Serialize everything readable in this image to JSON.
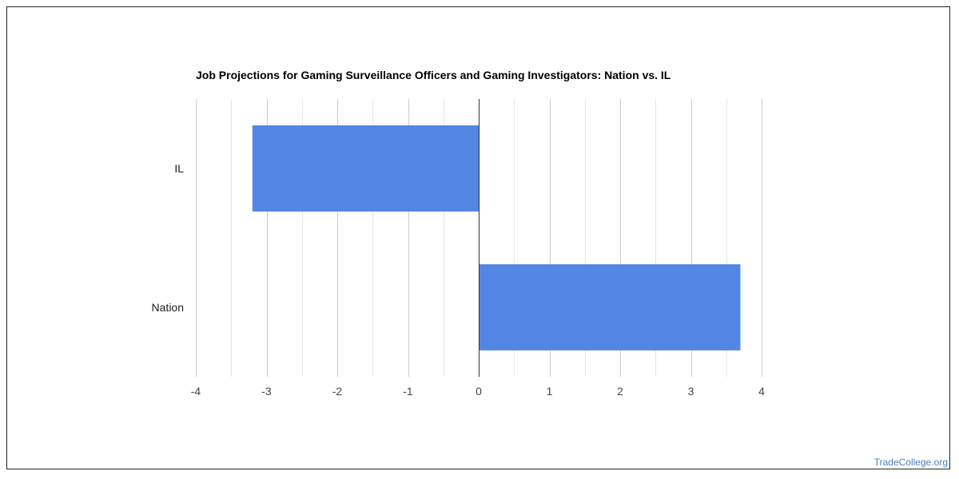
{
  "chart_data": {
    "type": "bar",
    "orientation": "horizontal",
    "title": "Job Projections for Gaming Surveillance Officers and Gaming Investigators: Nation vs. IL",
    "categories": [
      "IL",
      "Nation"
    ],
    "values": [
      -3.2,
      3.7
    ],
    "xlim": [
      -4,
      4
    ],
    "xticks": [
      "-4",
      "-3",
      "-2",
      "-1",
      "0",
      "1",
      "2",
      "3",
      "4"
    ],
    "minor_gridlines": true,
    "bar_color": "#5286e2",
    "grid_color": "#cccccc",
    "zero_line_color": "#333333",
    "legend": "none"
  },
  "watermark": "TradeCollege.org"
}
